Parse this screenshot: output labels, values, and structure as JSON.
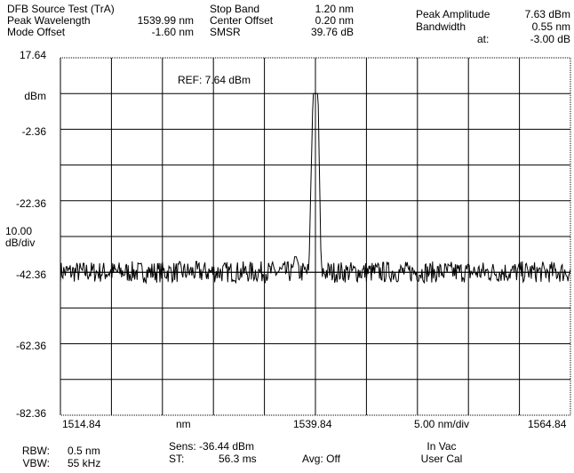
{
  "header": {
    "title": "DFB Source Test (TrA)",
    "peak_wavelength_label": "Peak Wavelength",
    "peak_wavelength_value": "1539.99 nm",
    "mode_offset_label": "Mode Offset",
    "mode_offset_value": "-1.60 nm",
    "stop_band_label": "Stop Band",
    "stop_band_value": "1.20 nm",
    "center_offset_label": "Center Offset",
    "center_offset_value": "0.20 nm",
    "smsr_label": "SMSR",
    "smsr_value": "39.76 dB",
    "peak_amplitude_label": "Peak Amplitude",
    "peak_amplitude_value": "7.63 dBm",
    "bandwidth_label": "Bandwidth",
    "bandwidth_value": "0.55 nm",
    "at_label": "at:",
    "at_value": "-3.00 dB"
  },
  "chart_data": {
    "type": "line",
    "ref_label": "REF: 7.64 dBm",
    "y_tick_labels": [
      "17.64",
      "dBm",
      "-2.36",
      "-22.36",
      "10.00",
      "dB/div",
      "-42.36",
      "-62.36",
      "-82.36"
    ],
    "x_tick_labels": [
      "1514.84",
      "nm",
      "1539.84",
      "5.00 nm/div",
      "1564.84"
    ],
    "xlim": [
      1514.84,
      1564.84
    ],
    "ylim": [
      -82.36,
      17.64
    ],
    "grid": true,
    "series": [
      {
        "values_description_free": true,
        "x": [
          1514.84,
          1525,
          1535,
          1537.6,
          1537.8,
          1538.0,
          1538.2,
          1538.4,
          1539.2,
          1539.6,
          1539.9,
          1540.1,
          1540.4,
          1541.0,
          1545,
          1555,
          1564.84
        ],
        "y": [
          -42.36,
          -42.0,
          -42.0,
          -42.3,
          -38.0,
          -38.0,
          -42.0,
          -42.3,
          -42.3,
          7.63,
          7.63,
          7.63,
          -42.3,
          -42.3,
          -42.0,
          -42.0,
          -42.36
        ]
      }
    ]
  },
  "footer": {
    "rbw_label": "RBW:",
    "rbw_value": "0.5 nm",
    "vbw_label": "VBW:",
    "vbw_value": "55 kHz",
    "sens_text": "Sens: -36.44 dBm",
    "st_label": "ST:",
    "st_value": "56.3 ms",
    "avg_text": "Avg:  Off",
    "in_vac": "In Vac",
    "user_cal": "User Cal"
  }
}
